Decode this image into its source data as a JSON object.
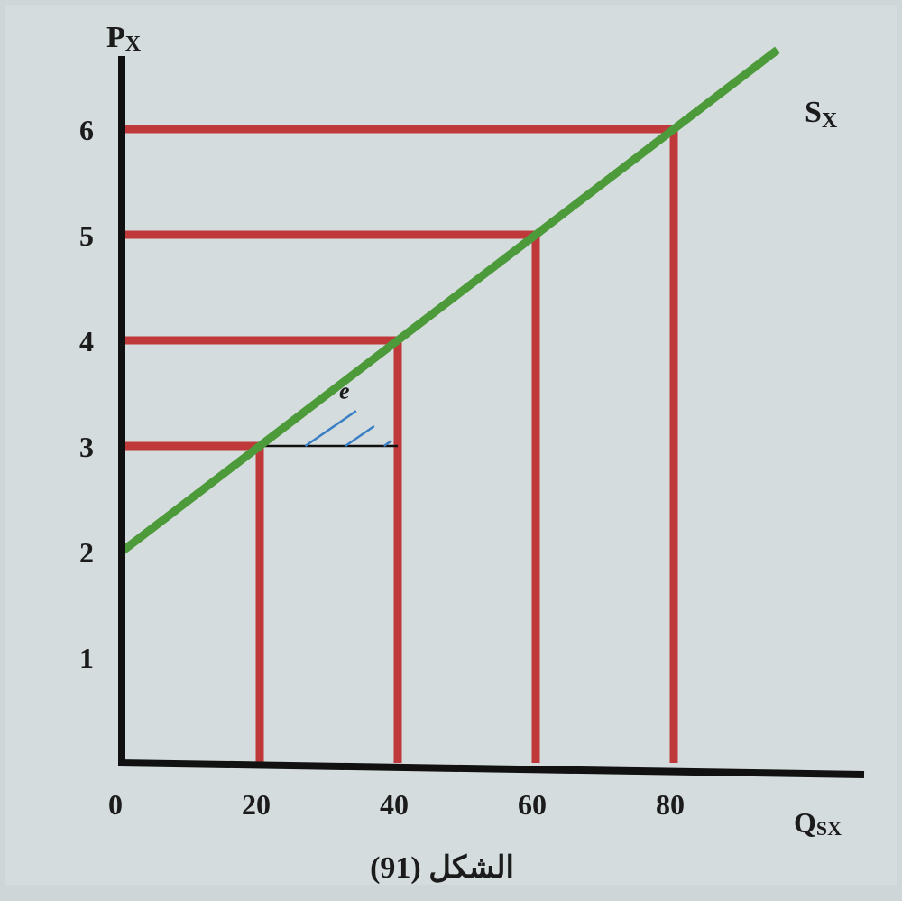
{
  "figure": {
    "caption": "الشكل (91)"
  },
  "chart_data": {
    "type": "line",
    "title": "",
    "ylabel": {
      "main": "P",
      "sub": "X"
    },
    "xlabel": {
      "main": "Q",
      "sub": "SX"
    },
    "xlim": [
      0,
      105
    ],
    "ylim": [
      0,
      7.6
    ],
    "x_ticks": [
      0,
      20,
      40,
      60,
      80
    ],
    "y_ticks": [
      1,
      2,
      3,
      4,
      5,
      6
    ],
    "series": [
      {
        "name": "S",
        "name_sub": "X",
        "x": [
          0,
          20,
          40,
          60,
          80,
          95
        ],
        "y": [
          2,
          3,
          4,
          5,
          6,
          6.75
        ],
        "color": "#4c9a3a"
      }
    ],
    "reference_points": [
      {
        "x": 20,
        "y": 3
      },
      {
        "x": 40,
        "y": 4
      },
      {
        "x": 60,
        "y": 5
      },
      {
        "x": 80,
        "y": 6
      }
    ],
    "reference_color": "#c0393a",
    "annotation": {
      "label": "e",
      "from_x": 20,
      "to_x": 40,
      "from_y": 3,
      "to_y": 4,
      "hatch_color": "#3a7fc4"
    }
  }
}
